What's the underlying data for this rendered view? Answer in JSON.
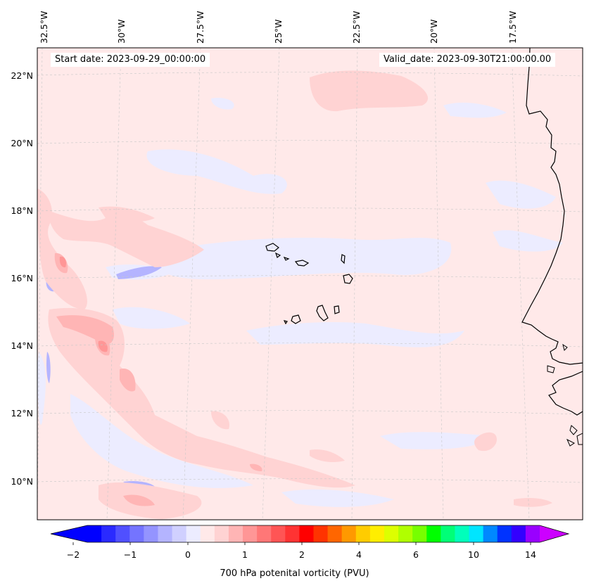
{
  "header": {
    "start_date": "Start date: 2023-09-29_00:00:00",
    "valid_date": "Valid_date: 2023-09-30T21:00:00.00"
  },
  "map": {
    "longitude_labels": [
      "32.5°W",
      "30°W",
      "27.5°W",
      "25°W",
      "22.5°W",
      "20°W",
      "17.5°W"
    ],
    "latitude_labels": [
      "22°N",
      "20°N",
      "18°N",
      "16°N",
      "14°N",
      "12°N",
      "10°N"
    ],
    "lon_range": [
      -32.7,
      -15.5
    ],
    "lat_range": [
      8.9,
      22.7
    ],
    "gridlines": true
  },
  "colorbar": {
    "label": "700 hPa potenital vorticity (PVU)",
    "tick_labels": [
      "−2",
      "−1",
      "0",
      "1",
      "2",
      "4",
      "6",
      "10",
      "14"
    ],
    "colors": [
      "#0000ff",
      "#2a2aff",
      "#5050ff",
      "#7474ff",
      "#9494ff",
      "#b4b4ff",
      "#d0d0ff",
      "#ececff",
      "#ffe9e9",
      "#ffd3d3",
      "#ffb5b5",
      "#ff9696",
      "#ff7777",
      "#ff5555",
      "#ff3333",
      "#ff0000",
      "#ff3300",
      "#ff6600",
      "#ff9900",
      "#ffcc00",
      "#ffee00",
      "#ddff00",
      "#b0ff00",
      "#77ff00",
      "#00ff00",
      "#00ff77",
      "#00ffbb",
      "#00e5ff",
      "#0088ff",
      "#0033ff",
      "#3300ff",
      "#9900ff"
    ],
    "under_color": "#0000ff",
    "over_color": "#cc00ff"
  }
}
